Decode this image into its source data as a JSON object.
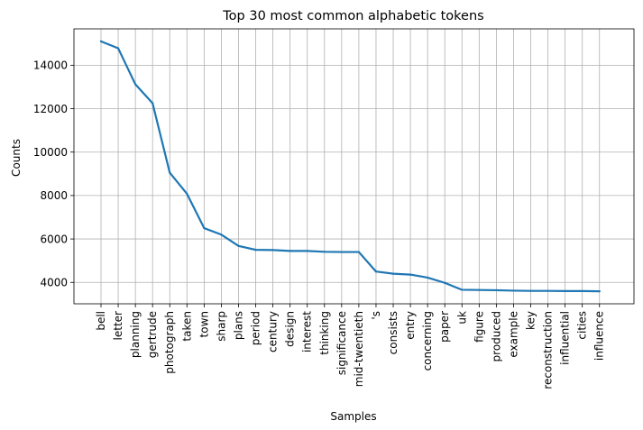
{
  "chart_data": {
    "type": "line",
    "title": "Top 30 most common alphabetic tokens",
    "xlabel": "Samples",
    "ylabel": "Counts",
    "categories": [
      "bell",
      "letter",
      "planning",
      "gertrude",
      "photograph",
      "taken",
      "town",
      "sharp",
      "plans",
      "period",
      "century",
      "design",
      "interest",
      "thinking",
      "significance",
      "mid-twentieth",
      "'s",
      "consists",
      "entry",
      "concerning",
      "paper",
      "uk",
      "figure",
      "produced",
      "example",
      "key",
      "reconstruction",
      "influential",
      "cities",
      "influence"
    ],
    "values": [
      15100,
      14780,
      13120,
      12250,
      9050,
      8080,
      6500,
      6200,
      5680,
      5500,
      5490,
      5450,
      5450,
      5410,
      5400,
      5400,
      4500,
      4400,
      4360,
      4220,
      3980,
      3660,
      3650,
      3640,
      3620,
      3610,
      3610,
      3600,
      3600,
      3590
    ],
    "yticks": [
      4000,
      6000,
      8000,
      10000,
      12000,
      14000
    ],
    "ylim": [
      3015,
      15675
    ],
    "grid": true,
    "line_color": "#1f77b4"
  }
}
